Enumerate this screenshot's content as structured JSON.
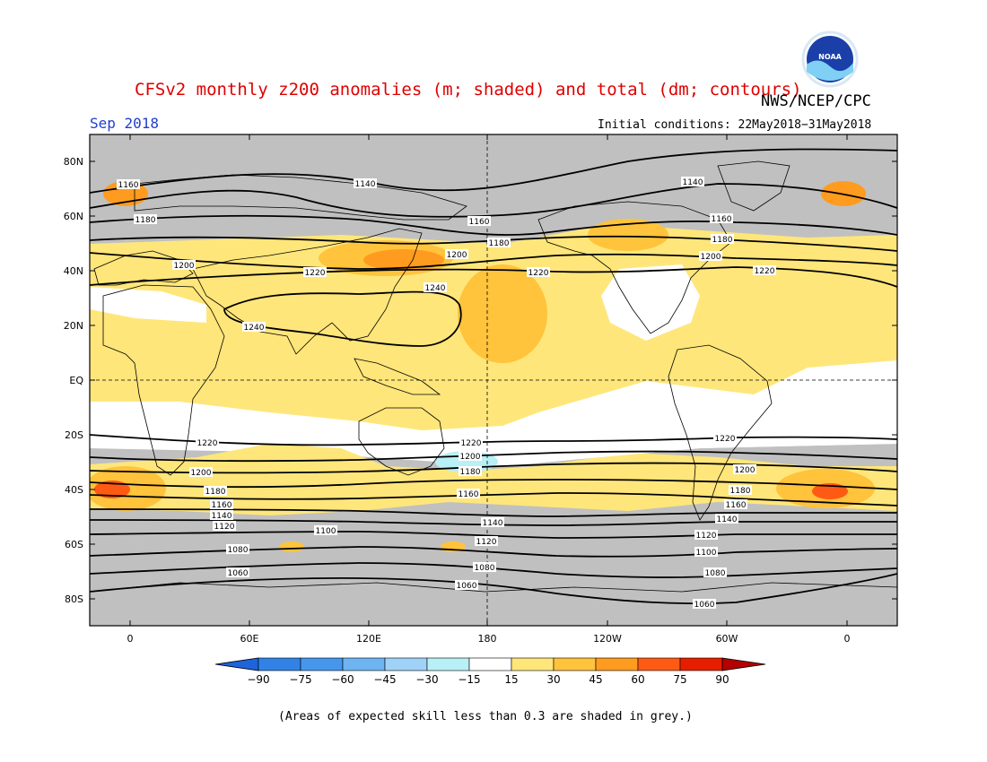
{
  "header": {
    "title": "CFSv2 monthly z200 anomalies (m; shaded) and total (dm; contours)",
    "agency": "NWS/NCEP/CPC",
    "valid_month": "Sep 2018",
    "initial_conditions": "Initial conditions: 22May2018−31May2018"
  },
  "logo": {
    "text": "NOAA"
  },
  "map": {
    "lat_ticks": [
      "80N",
      "60N",
      "40N",
      "20N",
      "EQ",
      "20S",
      "40S",
      "60S",
      "80S"
    ],
    "lon_ticks": [
      "0",
      "60E",
      "120E",
      "180",
      "120W",
      "60W",
      "0"
    ]
  },
  "colorbar": {
    "labels": [
      "−90",
      "−75",
      "−60",
      "−45",
      "−30",
      "−15",
      "15",
      "30",
      "45",
      "60",
      "75",
      "90"
    ],
    "colors": [
      "#1e64dc",
      "#3282e6",
      "#4696ec",
      "#6eb4f0",
      "#a0d2f8",
      "#b8f0f6",
      "#ffffff",
      "#ffe67a",
      "#ffc33c",
      "#ff9b1e",
      "#ff5a14",
      "#e61e00",
      "#b40000"
    ]
  },
  "contours": {
    "labels": [
      "1160",
      "1140",
      "1140",
      "1180",
      "1160",
      "1160",
      "1180",
      "1180",
      "1200",
      "1200",
      "1200",
      "1220",
      "1220",
      "1220",
      "1240",
      "1240",
      "1220",
      "1220",
      "1220",
      "1200",
      "1200",
      "1200",
      "1180",
      "1180",
      "1180",
      "1160",
      "1160",
      "1160",
      "1140",
      "1140",
      "1140",
      "1120",
      "1120",
      "1120",
      "1100",
      "1100",
      "1080",
      "1080",
      "1080",
      "1060",
      "1060",
      "1060"
    ]
  },
  "footnote": "(Areas of expected skill less than 0.3 are shaded in grey.)"
}
